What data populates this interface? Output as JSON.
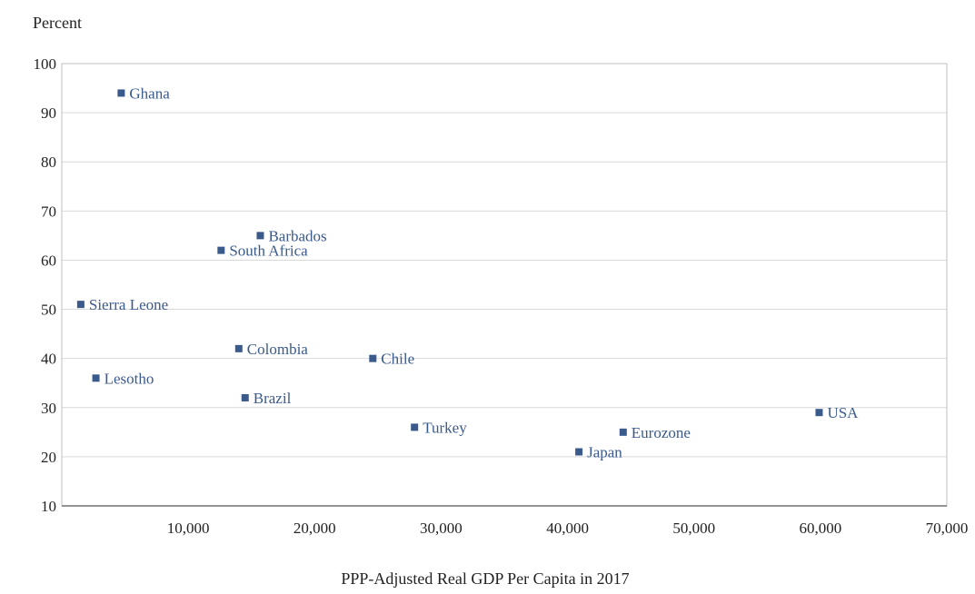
{
  "chart_data": {
    "type": "scatter",
    "title": "",
    "ylabel": "Percent",
    "xlabel": "PPP-Adjusted Real GDP Per Capita in 2017",
    "xlim": [
      0,
      70000
    ],
    "ylim": [
      10,
      100
    ],
    "xticks": [
      10000,
      20000,
      30000,
      40000,
      50000,
      60000,
      70000
    ],
    "xtick_labels": [
      "10,000",
      "20,000",
      "30,000",
      "40,000",
      "50,000",
      "60,000",
      "70,000"
    ],
    "yticks": [
      10,
      20,
      30,
      40,
      50,
      60,
      70,
      80,
      90,
      100
    ],
    "ytick_labels": [
      "10",
      "20",
      "30",
      "40",
      "50",
      "60",
      "70",
      "80",
      "90",
      "100"
    ],
    "grid": "horizontal",
    "marker_color": "#3a5a8c",
    "label_color": "#3a5a8c",
    "points": [
      {
        "label": "Ghana",
        "x": 4700,
        "y": 94
      },
      {
        "label": "Barbados",
        "x": 15700,
        "y": 65
      },
      {
        "label": "South Africa",
        "x": 12600,
        "y": 62
      },
      {
        "label": "Sierra Leone",
        "x": 1500,
        "y": 51
      },
      {
        "label": "Colombia",
        "x": 14000,
        "y": 42
      },
      {
        "label": "Chile",
        "x": 24600,
        "y": 40
      },
      {
        "label": "Lesotho",
        "x": 2700,
        "y": 36
      },
      {
        "label": "Brazil",
        "x": 14500,
        "y": 32
      },
      {
        "label": "Turkey",
        "x": 27900,
        "y": 26
      },
      {
        "label": "Eurozone",
        "x": 44400,
        "y": 25
      },
      {
        "label": "Japan",
        "x": 40900,
        "y": 21
      },
      {
        "label": "USA",
        "x": 59900,
        "y": 29
      }
    ]
  }
}
